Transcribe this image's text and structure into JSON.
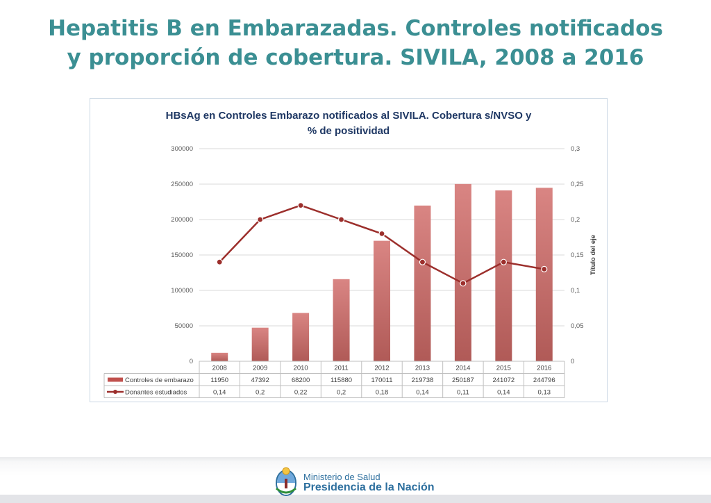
{
  "slide": {
    "title_line1": "Hepatitis B en Embarazadas. Controles notificados",
    "title_line2": "y proporción de cobertura. SIVILA, 2008 a 2016"
  },
  "footer": {
    "ministry_line1": "Ministerio de Salud",
    "ministry_line2": "Presidencia de la Nación"
  },
  "chart_data": {
    "type": "bar",
    "title_line1": "HBsAg en Controles Embarazo notificados al SIVILA. Cobertura s/NVSO y",
    "title_line2": "% de positividad",
    "categories": [
      "2008",
      "2009",
      "2010",
      "2011",
      "2012",
      "2013",
      "2014",
      "2015",
      "2016"
    ],
    "series": [
      {
        "name": "Controles de embarazo",
        "type": "bar",
        "axis": "left",
        "color": "#c0504d",
        "values": [
          11950,
          47392,
          68200,
          115880,
          170011,
          219738,
          250187,
          241072,
          244796
        ],
        "labels": [
          "11950",
          "47392",
          "68200",
          "115880",
          "170011",
          "219738",
          "250187",
          "241072",
          "244796"
        ]
      },
      {
        "name": "Donantes estudiados",
        "type": "line",
        "axis": "right",
        "color": "#9c2f2c",
        "values": [
          0.14,
          0.2,
          0.22,
          0.2,
          0.18,
          0.14,
          0.11,
          0.14,
          0.13
        ],
        "labels": [
          "0,14",
          "0,2",
          "0,22",
          "0,2",
          "0,18",
          "0,14",
          "0,11",
          "0,14",
          "0,13"
        ]
      }
    ],
    "y_left": {
      "min": 0,
      "max": 300000,
      "ticks": [
        "0",
        "50000",
        "100000",
        "150000",
        "200000",
        "250000",
        "300000"
      ]
    },
    "y_right": {
      "label": "Título del eje",
      "min": 0,
      "max": 0.3,
      "ticks": [
        "0",
        "0,05",
        "0,1",
        "0,15",
        "0,2",
        "0,25",
        "0,3"
      ]
    },
    "grid": true,
    "legend_placement": "data-table"
  }
}
